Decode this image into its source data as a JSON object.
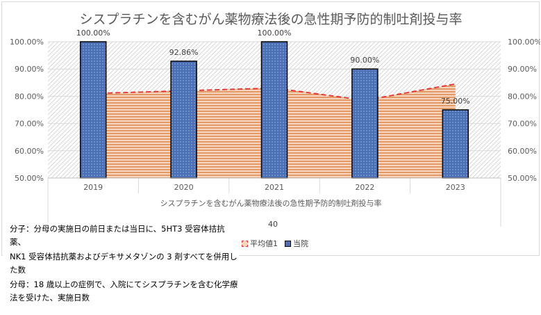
{
  "chart_data": {
    "type": "bar",
    "title": "シスプラチンを含むがん薬物療法後の急性期予防的制吐剤投与率",
    "xlabel": "シスプラチンを含むがん薬物療法後の急性期予防的制吐剤投与率",
    "categories": [
      "2019",
      "2020",
      "2021",
      "2022",
      "2023"
    ],
    "series": [
      {
        "name": "平均値1",
        "kind": "area-dashed",
        "values": [
          81.0,
          82.0,
          83.0,
          78.5,
          84.5
        ]
      },
      {
        "name": "当院",
        "kind": "bar",
        "values": [
          100.0,
          92.86,
          100.0,
          90.0,
          75.0
        ],
        "labels": [
          "100.00%",
          "92.86%",
          "100.00%",
          "90.00%",
          "75.00%"
        ]
      }
    ],
    "ylim": [
      50,
      100
    ],
    "yticks": [
      "50.00%",
      "60.00%",
      "70.00%",
      "80.00%",
      "90.00%",
      "100.00%"
    ],
    "secondary_axis_label": "40",
    "legend_position": "bottom",
    "grid": true,
    "colors": {
      "bar": "#4a6fb4",
      "bar_edge": "#000000",
      "avg_line": "#e53935",
      "avg_fill": "#e8a57a",
      "hatch": "#cfcfcf"
    }
  },
  "legend": [
    {
      "label": "平均値1",
      "icon": "red-dashed-square"
    },
    {
      "label": "当院",
      "icon": "blue-hatched-square"
    }
  ],
  "notes": [
    "分子：分母の実施日の前日または当日に、5HT3 受容体拮抗薬、",
    "NK1 受容体拮抗薬およびデキサメタゾンの 3 剤すべてを併用した数",
    "分母：18 歳以上の症例で、入院にてシスプラチンを含む化学療法を受けた、実施日数"
  ]
}
